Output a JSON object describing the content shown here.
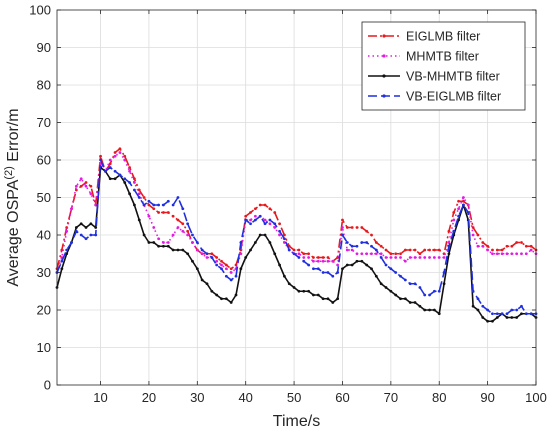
{
  "chart_data": {
    "type": "line",
    "title": "",
    "xlabel": "Time/s",
    "ylabel_prefix": "Average OSPA",
    "ylabel_superscript": "(2)",
    "ylabel_suffix": " Error/m",
    "xlim": [
      1,
      100
    ],
    "ylim": [
      0,
      100
    ],
    "xticks": [
      10,
      20,
      30,
      40,
      50,
      60,
      70,
      80,
      90,
      100
    ],
    "yticks": [
      0,
      10,
      20,
      30,
      40,
      50,
      60,
      70,
      80,
      90,
      100
    ],
    "grid": true,
    "legend_position": "top-right",
    "x": [
      1,
      2,
      3,
      4,
      5,
      6,
      7,
      8,
      9,
      10,
      11,
      12,
      13,
      14,
      15,
      16,
      17,
      18,
      19,
      20,
      21,
      22,
      23,
      24,
      25,
      26,
      27,
      28,
      29,
      30,
      31,
      32,
      33,
      34,
      35,
      36,
      37,
      38,
      39,
      40,
      41,
      42,
      43,
      44,
      45,
      46,
      47,
      48,
      49,
      50,
      51,
      52,
      53,
      54,
      55,
      56,
      57,
      58,
      59,
      60,
      61,
      62,
      63,
      64,
      65,
      66,
      67,
      68,
      69,
      70,
      71,
      72,
      73,
      74,
      75,
      76,
      77,
      78,
      79,
      80,
      81,
      82,
      83,
      84,
      85,
      86,
      87,
      88,
      89,
      90,
      91,
      92,
      93,
      94,
      95,
      96,
      97,
      98,
      99,
      100
    ],
    "series": [
      {
        "name": "EIGLMB filter",
        "color": "#e8191c",
        "dash": "9,3,2,3",
        "values": [
          31,
          36,
          42,
          47,
          52,
          53,
          54,
          53,
          48,
          61,
          57,
          59,
          62,
          63,
          61,
          58,
          55,
          52,
          50,
          48,
          47,
          46,
          46,
          46,
          45,
          44,
          43,
          41,
          38,
          36,
          35,
          35,
          35,
          34,
          33,
          32,
          31,
          32,
          36,
          45,
          46,
          47,
          48,
          48,
          47,
          46,
          43,
          40,
          37,
          36,
          36,
          35,
          35,
          34,
          34,
          34,
          34,
          33,
          34,
          44,
          42,
          42,
          42,
          42,
          41,
          40,
          38,
          37,
          36,
          35,
          35,
          35,
          36,
          36,
          36,
          35,
          36,
          36,
          36,
          36,
          35,
          41,
          46,
          49,
          49,
          48,
          42,
          40,
          38,
          37,
          36,
          36,
          36,
          37,
          37,
          38,
          38,
          37,
          37,
          36
        ]
      },
      {
        "name": "MHMTB filter",
        "color": "#e31be3",
        "dash": "1.5,3",
        "values": [
          30,
          34,
          41,
          47,
          53,
          55,
          53,
          51,
          48,
          59,
          57,
          60,
          61,
          62,
          60,
          57,
          54,
          51,
          48,
          45,
          42,
          39,
          38,
          38,
          40,
          42,
          41,
          40,
          38,
          36,
          35,
          34,
          34,
          33,
          32,
          31,
          30,
          31,
          35,
          44,
          44,
          45,
          45,
          44,
          43,
          42,
          40,
          38,
          36,
          35,
          35,
          34,
          34,
          33,
          33,
          33,
          33,
          33,
          32,
          42,
          36,
          36,
          35,
          35,
          35,
          35,
          35,
          35,
          34,
          34,
          34,
          34,
          33,
          34,
          34,
          34,
          34,
          34,
          34,
          34,
          34,
          38,
          44,
          47,
          50,
          48,
          40,
          37,
          37,
          36,
          35,
          35,
          35,
          35,
          35,
          35,
          35,
          35,
          36,
          35
        ]
      },
      {
        "name": "VB-MHMTB filter",
        "color": "#111111",
        "dash": "",
        "values": [
          26,
          31,
          35,
          38,
          42,
          43,
          42,
          43,
          42,
          58,
          57,
          55,
          55,
          56,
          54,
          51,
          48,
          44,
          40,
          38,
          38,
          37,
          37,
          37,
          36,
          36,
          36,
          35,
          33,
          31,
          28,
          27,
          25,
          24,
          23,
          23,
          22,
          24,
          31,
          34,
          36,
          38,
          40,
          40,
          38,
          35,
          32,
          29,
          27,
          26,
          25,
          25,
          25,
          24,
          24,
          23,
          23,
          22,
          23,
          31,
          32,
          32,
          33,
          33,
          32,
          31,
          29,
          27,
          26,
          25,
          24,
          23,
          23,
          22,
          22,
          21,
          20,
          20,
          20,
          19,
          27,
          35,
          40,
          44,
          48,
          44,
          21,
          20,
          18,
          17,
          17,
          18,
          19,
          18,
          18,
          18,
          19,
          19,
          19,
          18
        ]
      },
      {
        "name": "VB-EIGLMB filter",
        "color": "#1f2fe0",
        "dash": "9,4",
        "values": [
          30,
          33,
          36,
          38,
          41,
          40,
          39,
          40,
          40,
          60,
          57,
          58,
          57,
          56,
          55,
          54,
          52,
          50,
          48,
          49,
          48,
          48,
          48,
          49,
          48,
          50,
          47,
          43,
          40,
          38,
          36,
          35,
          34,
          32,
          31,
          29,
          28,
          29,
          38,
          44,
          43,
          44,
          45,
          43,
          44,
          43,
          41,
          39,
          36,
          35,
          34,
          33,
          32,
          31,
          31,
          30,
          30,
          29,
          30,
          40,
          38,
          37,
          37,
          38,
          38,
          37,
          36,
          34,
          32,
          31,
          30,
          29,
          28,
          27,
          27,
          26,
          24,
          24,
          25,
          25,
          30,
          37,
          41,
          45,
          48,
          46,
          25,
          23,
          21,
          20,
          19,
          19,
          19,
          19,
          20,
          20,
          21,
          19,
          19,
          19
        ]
      }
    ]
  }
}
